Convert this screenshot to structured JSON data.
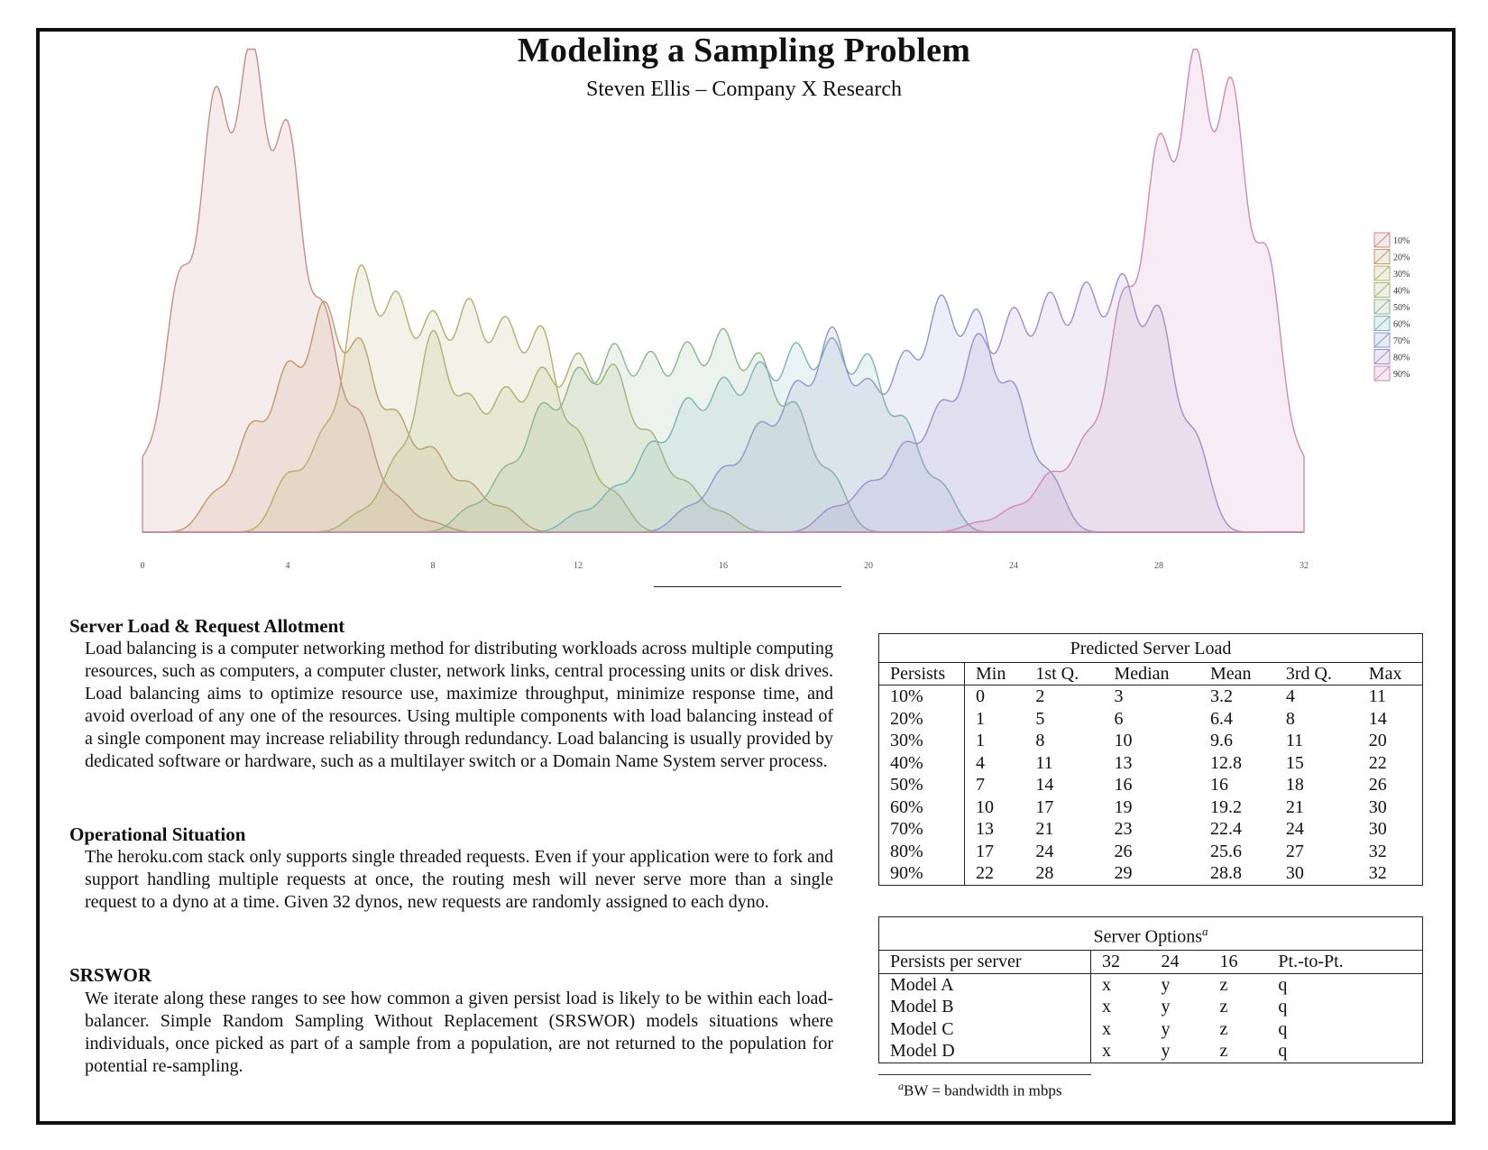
{
  "header": {
    "title": "Modeling a Sampling Problem",
    "subtitle": "Steven Ellis – Company X Research"
  },
  "chart_data": {
    "type": "area",
    "xlim": [
      0,
      32
    ],
    "x_ticks": [
      "0",
      "4",
      "8",
      "12",
      "16",
      "20",
      "24",
      "28",
      "32"
    ],
    "legend_position": "right",
    "series": [
      {
        "name": "10%",
        "color": "#c98b8b",
        "peaks": [
          [
            0,
            0.14
          ],
          [
            1,
            0.52
          ],
          [
            2,
            0.9
          ],
          [
            3,
            1.0
          ],
          [
            4,
            0.83
          ],
          [
            5,
            0.45
          ],
          [
            6,
            0.24
          ],
          [
            7,
            0.07
          ],
          [
            8,
            0.02
          ]
        ]
      },
      {
        "name": "20%",
        "color": "#bf9a6a",
        "peaks": [
          [
            2,
            0.08
          ],
          [
            3,
            0.22
          ],
          [
            4,
            0.34
          ],
          [
            5,
            0.47
          ],
          [
            6,
            0.39
          ],
          [
            7,
            0.24
          ],
          [
            8,
            0.17
          ],
          [
            9,
            0.1
          ],
          [
            10,
            0.05
          ]
        ]
      },
      {
        "name": "30%",
        "color": "#b7ae6e",
        "peaks": [
          [
            4,
            0.12
          ],
          [
            5,
            0.2
          ],
          [
            6,
            0.55
          ],
          [
            7,
            0.48
          ],
          [
            8,
            0.44
          ],
          [
            9,
            0.47
          ],
          [
            10,
            0.43
          ],
          [
            11,
            0.42
          ],
          [
            12,
            0.2
          ],
          [
            13,
            0.08
          ]
        ]
      },
      {
        "name": "40%",
        "color": "#a5b56f",
        "peaks": [
          [
            6,
            0.04
          ],
          [
            7,
            0.15
          ],
          [
            8,
            0.42
          ],
          [
            9,
            0.27
          ],
          [
            10,
            0.29
          ],
          [
            11,
            0.33
          ],
          [
            12,
            0.36
          ],
          [
            13,
            0.34
          ],
          [
            14,
            0.2
          ],
          [
            15,
            0.1
          ],
          [
            16,
            0.04
          ]
        ]
      },
      {
        "name": "50%",
        "color": "#8bb58e",
        "peaks": [
          [
            9,
            0.05
          ],
          [
            10,
            0.13
          ],
          [
            11,
            0.26
          ],
          [
            12,
            0.33
          ],
          [
            13,
            0.38
          ],
          [
            14,
            0.36
          ],
          [
            15,
            0.38
          ],
          [
            16,
            0.41
          ],
          [
            17,
            0.36
          ],
          [
            18,
            0.26
          ],
          [
            19,
            0.12
          ]
        ]
      },
      {
        "name": "60%",
        "color": "#7ab3b8",
        "peaks": [
          [
            12,
            0.04
          ],
          [
            13,
            0.09
          ],
          [
            14,
            0.18
          ],
          [
            15,
            0.27
          ],
          [
            16,
            0.31
          ],
          [
            17,
            0.34
          ],
          [
            18,
            0.38
          ],
          [
            19,
            0.39
          ],
          [
            20,
            0.36
          ],
          [
            21,
            0.23
          ],
          [
            22,
            0.1
          ]
        ]
      },
      {
        "name": "70%",
        "color": "#8c98cc",
        "peaks": [
          [
            15,
            0.05
          ],
          [
            16,
            0.13
          ],
          [
            17,
            0.22
          ],
          [
            18,
            0.3
          ],
          [
            19,
            0.42
          ],
          [
            20,
            0.3
          ],
          [
            21,
            0.36
          ],
          [
            22,
            0.48
          ],
          [
            23,
            0.45
          ],
          [
            24,
            0.3
          ],
          [
            25,
            0.12
          ]
        ]
      },
      {
        "name": "80%",
        "color": "#a38ccc",
        "peaks": [
          [
            19,
            0.05
          ],
          [
            20,
            0.1
          ],
          [
            21,
            0.18
          ],
          [
            22,
            0.26
          ],
          [
            23,
            0.4
          ],
          [
            24,
            0.45
          ],
          [
            25,
            0.48
          ],
          [
            26,
            0.5
          ],
          [
            27,
            0.52
          ],
          [
            28,
            0.46
          ],
          [
            29,
            0.2
          ]
        ]
      },
      {
        "name": "90%",
        "color": "#cf8ab7",
        "peaks": [
          [
            23,
            0.02
          ],
          [
            24,
            0.05
          ],
          [
            25,
            0.12
          ],
          [
            26,
            0.19
          ],
          [
            27,
            0.48
          ],
          [
            28,
            0.8
          ],
          [
            29,
            0.98
          ],
          [
            30,
            0.92
          ],
          [
            31,
            0.57
          ],
          [
            32,
            0.14
          ]
        ]
      }
    ]
  },
  "sections": [
    {
      "heading": "Server Load & Request Allotment",
      "text": "Load balancing is a computer networking method for distributing workloads across multiple computing resources, such as computers, a computer cluster, network links, central processing units or disk drives.  Load balancing aims to optimize resource use, maximize throughput, minimize response time, and avoid overload of any one of the resources. Using multiple components with load balancing instead of a single component may increase reliability through redundancy.  Load balancing is usually provided by dedicated software or hardware, such as a multilayer switch or a Domain Name System server process."
    },
    {
      "heading": "Operational Situation",
      "text": "The heroku.com stack only supports single threaded requests. Even if your application were to fork and support handling multiple requests at once, the routing mesh will never serve more than a single request to a dyno at a time. Given 32 dynos, new requests are randomly assigned to each dyno."
    },
    {
      "heading": "SRSWOR",
      "text": "We iterate along these ranges to see how common a given persist load is likely to be within each load-balancer.  Simple Random Sampling Without Replacement (SRSWOR) models situations where individuals, once picked as part of a sample from a population, are not returned to the population for potential re-sampling."
    }
  ],
  "load_table": {
    "caption": "Predicted Server Load",
    "headers": [
      "Persists",
      "Min",
      "1st Q.",
      "Median",
      "Mean",
      "3rd Q.",
      "Max"
    ],
    "rows": [
      [
        "10%",
        "0",
        "2",
        "3",
        "3.2",
        "4",
        "11"
      ],
      [
        "20%",
        "1",
        "5",
        "6",
        "6.4",
        "8",
        "14"
      ],
      [
        "30%",
        "1",
        "8",
        "10",
        "9.6",
        "11",
        "20"
      ],
      [
        "40%",
        "4",
        "11",
        "13",
        "12.8",
        "15",
        "22"
      ],
      [
        "50%",
        "7",
        "14",
        "16",
        "16",
        "18",
        "26"
      ],
      [
        "60%",
        "10",
        "17",
        "19",
        "19.2",
        "21",
        "30"
      ],
      [
        "70%",
        "13",
        "21",
        "23",
        "22.4",
        "24",
        "30"
      ],
      [
        "80%",
        "17",
        "24",
        "26",
        "25.6",
        "27",
        "32"
      ],
      [
        "90%",
        "22",
        "28",
        "29",
        "28.8",
        "30",
        "32"
      ]
    ]
  },
  "options_table": {
    "caption": "Server Options",
    "caption_mark": "a",
    "headers": [
      "Persists per server",
      "32",
      "24",
      "16",
      "Pt.-to-Pt."
    ],
    "rows": [
      [
        "Model A",
        "x",
        "y",
        "z",
        "q"
      ],
      [
        "Model B",
        "x",
        "y",
        "z",
        "q"
      ],
      [
        "Model C",
        "x",
        "y",
        "z",
        "q"
      ],
      [
        "Model D",
        "x",
        "y",
        "z",
        "q"
      ]
    ]
  },
  "footnote": {
    "mark": "a",
    "text": "BW = bandwidth in mbps"
  }
}
